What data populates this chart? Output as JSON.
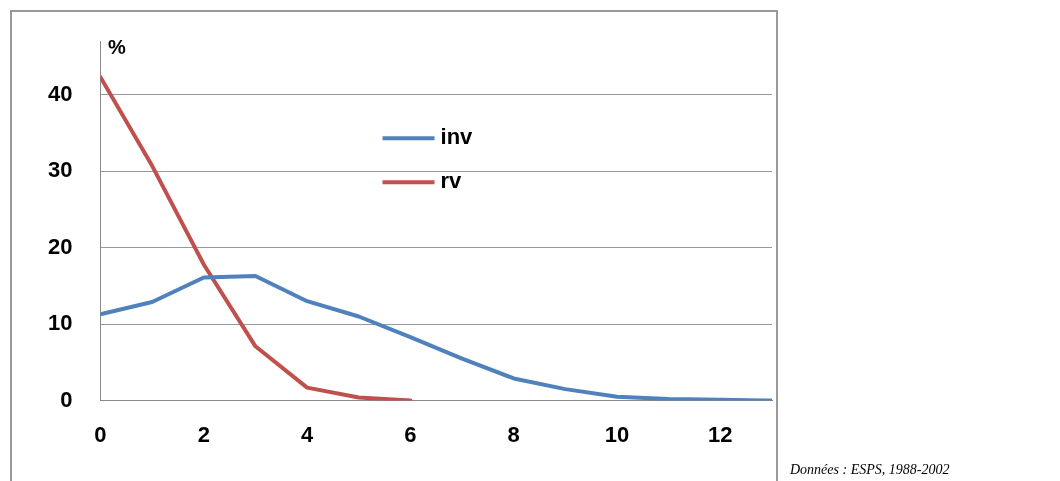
{
  "chart_data": {
    "type": "line",
    "ylabel": "%",
    "x": [
      0,
      1,
      2,
      3,
      4,
      5,
      6,
      7,
      8,
      9,
      10,
      11,
      12,
      13
    ],
    "series": [
      {
        "name": "inv",
        "color": "#4f81bd",
        "values": [
          11.3,
          12.9,
          16.1,
          16.3,
          13.0,
          11.0,
          8.3,
          5.5,
          2.9,
          1.5,
          0.5,
          0.2,
          0.1,
          0
        ]
      },
      {
        "name": "rv",
        "color": "#c0504d",
        "x": [
          0,
          1,
          2,
          3,
          4,
          5,
          6
        ],
        "values": [
          42.3,
          30.7,
          17.8,
          7.1,
          1.7,
          0.4,
          0
        ]
      }
    ],
    "xlim": [
      0,
      13
    ],
    "xticks": [
      0,
      2,
      4,
      6,
      8,
      10,
      12
    ],
    "ylim": [
      0,
      47
    ],
    "yticks": [
      0,
      10,
      20,
      30,
      40
    ],
    "grid": "y",
    "legend": "center",
    "marker": "none",
    "line_style": "solid",
    "annotations": [
      "Données : ESPS, 1988-2002"
    ]
  }
}
